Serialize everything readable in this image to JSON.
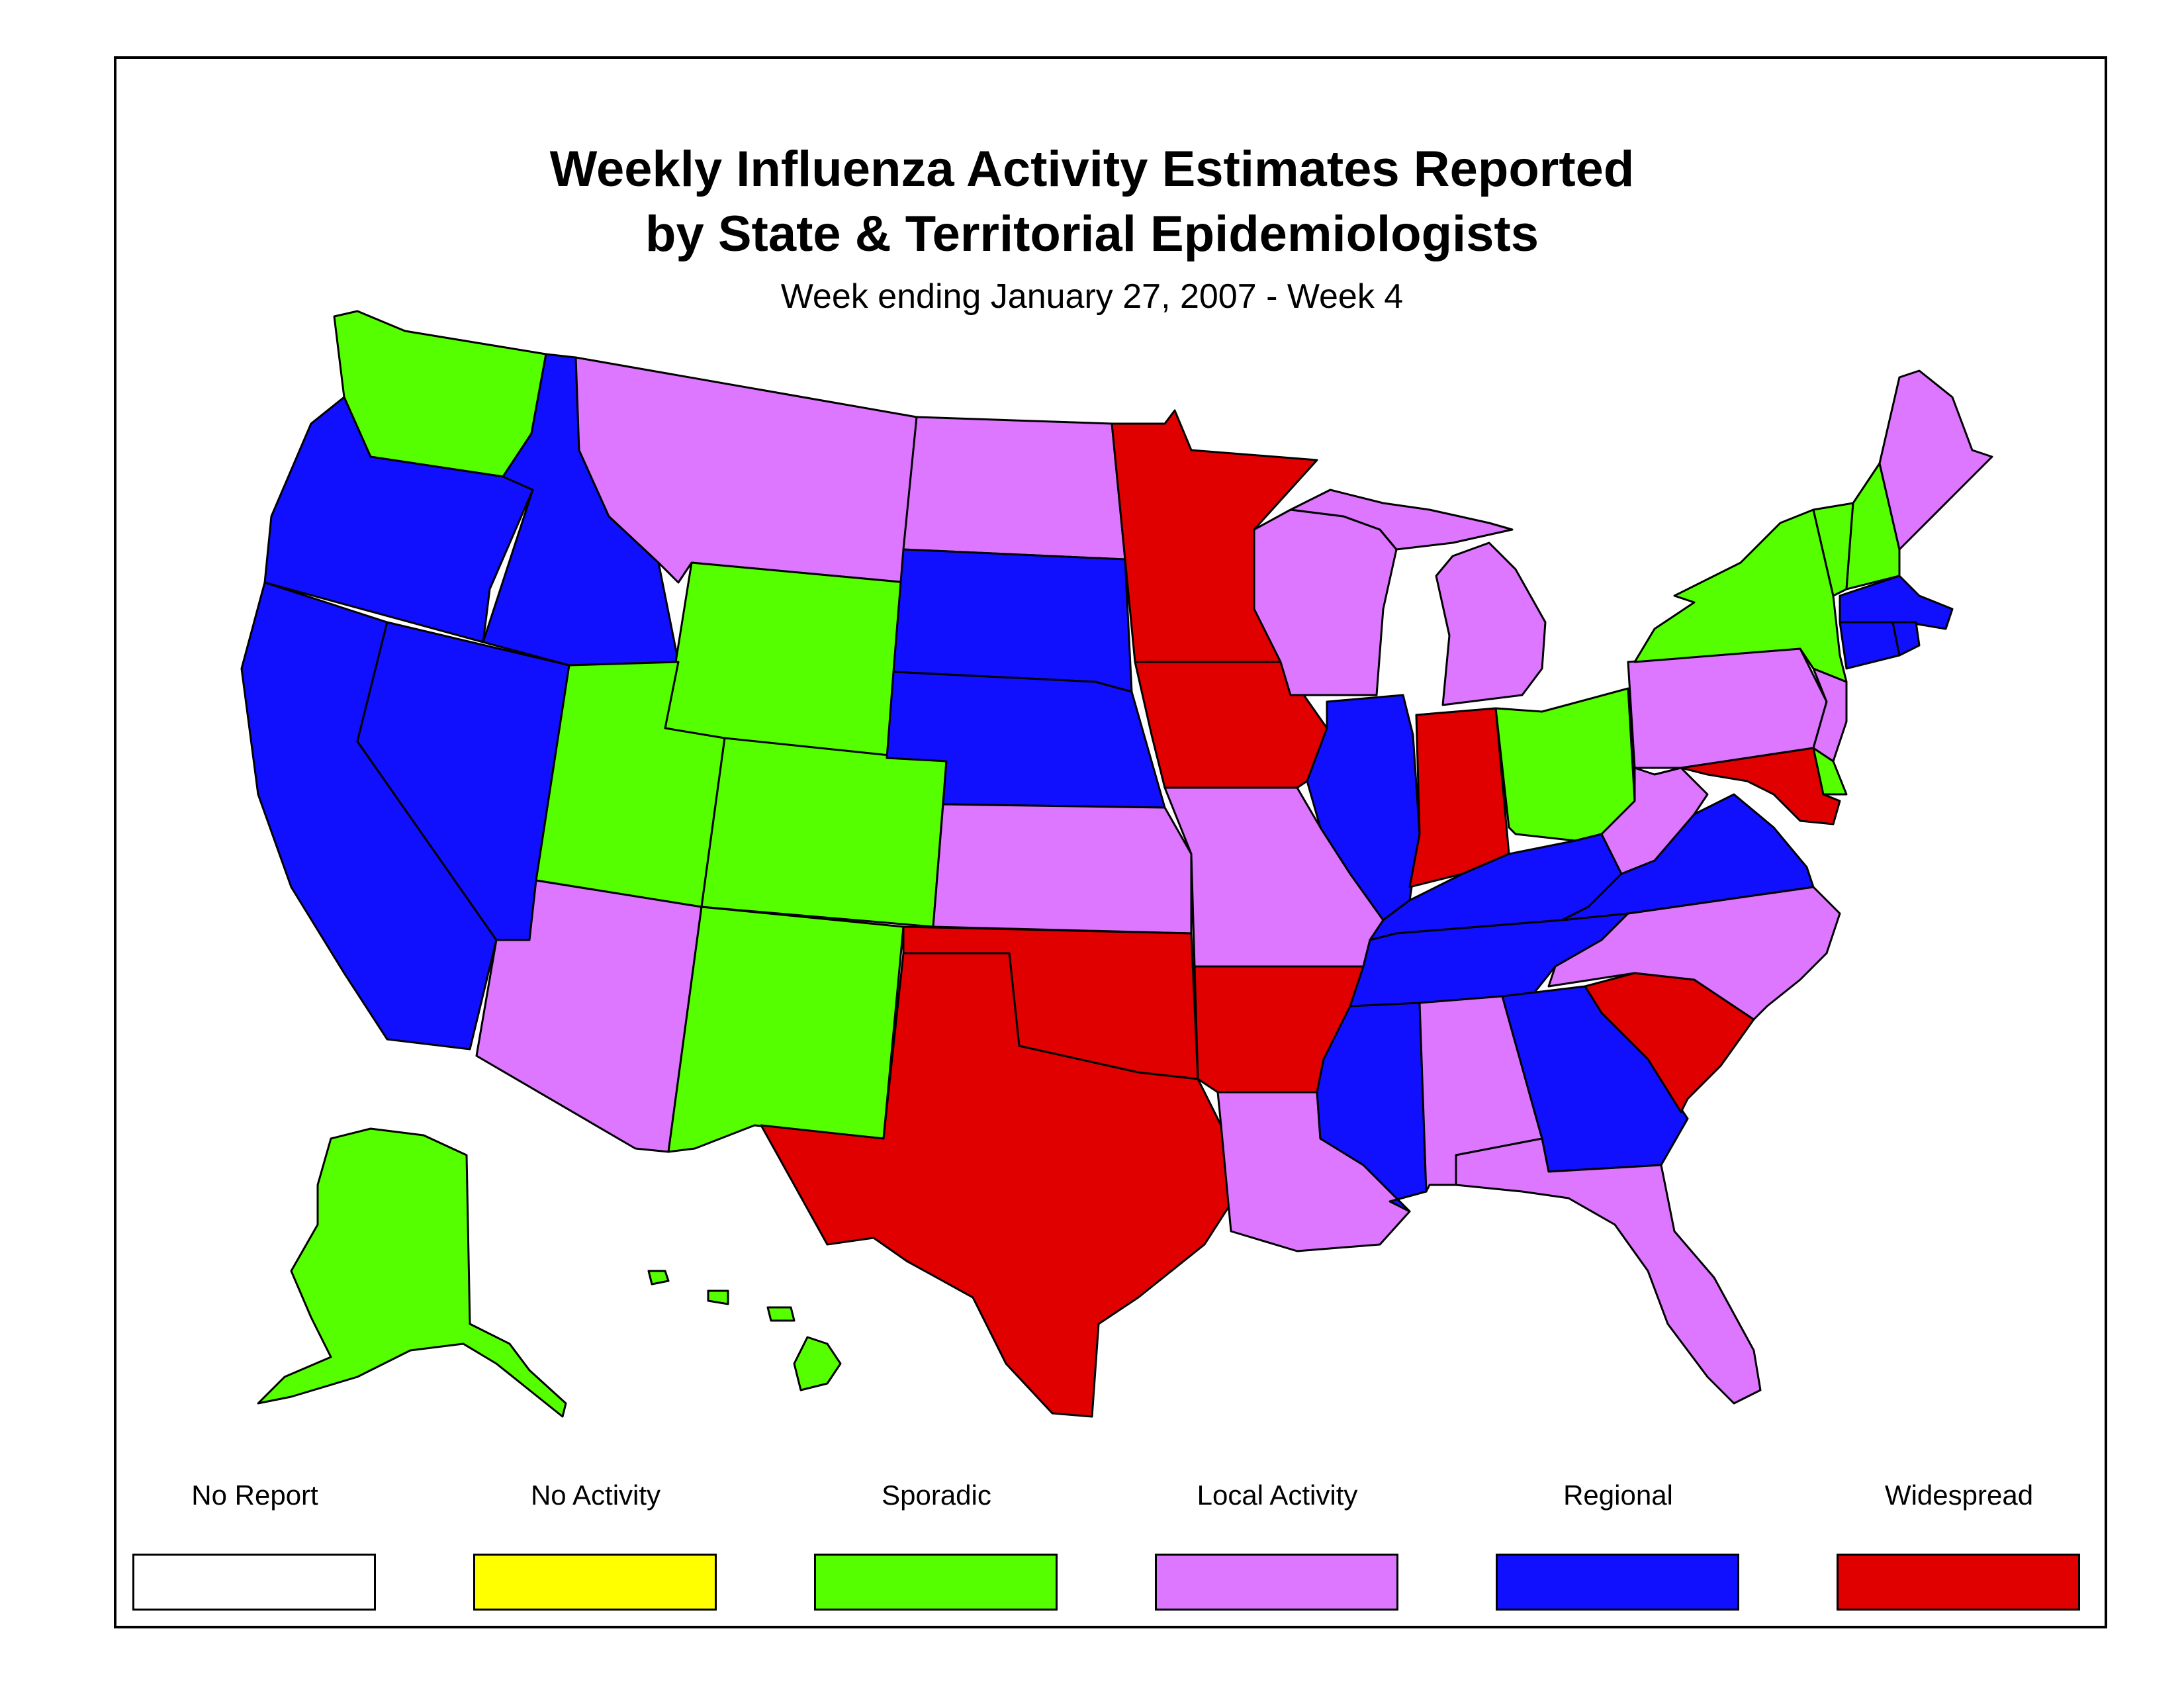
{
  "title_line1": "Weekly Influenza Activity Estimates Reported",
  "title_line2": "by State & Territorial Epidemiologists",
  "subtitle": "Week ending January 27, 2007 - Week 4",
  "legend": [
    {
      "key": "no_report",
      "label": "No Report",
      "color": "#ffffff"
    },
    {
      "key": "no_activity",
      "label": "No Activity",
      "color": "#ffff00"
    },
    {
      "key": "sporadic",
      "label": "Sporadic",
      "color": "#55ff00"
    },
    {
      "key": "local",
      "label": "Local Activity",
      "color": "#dd77ff"
    },
    {
      "key": "regional",
      "label": "Regional",
      "color": "#1010ff"
    },
    {
      "key": "widespread",
      "label": "Widespread",
      "color": "#e00000"
    }
  ],
  "state_activity": {
    "WA": "sporadic",
    "OR": "regional",
    "CA": "regional",
    "ID": "regional",
    "NV": "regional",
    "MT": "local",
    "WY": "sporadic",
    "UT": "sporadic",
    "CO": "sporadic",
    "AZ": "local",
    "NM": "sporadic",
    "ND": "local",
    "SD": "regional",
    "NE": "regional",
    "KS": "local",
    "OK": "widespread",
    "TX": "widespread",
    "MN": "widespread",
    "IA": "widespread",
    "MO": "local",
    "AR": "widespread",
    "LA": "local",
    "WI": "local",
    "IL": "regional",
    "MI": "local",
    "IN": "widespread",
    "OH": "sporadic",
    "KY": "regional",
    "TN": "regional",
    "MS": "regional",
    "AL": "local",
    "GA": "regional",
    "FL": "local",
    "SC": "widespread",
    "NC": "local",
    "VA": "regional",
    "WV": "local",
    "MD": "widespread",
    "DE": "sporadic",
    "PA": "local",
    "NJ": "local",
    "NY": "sporadic",
    "CT": "regional",
    "RI": "regional",
    "MA": "regional",
    "VT": "sporadic",
    "NH": "sporadic",
    "ME": "local",
    "AK": "sporadic",
    "HI": "sporadic"
  }
}
